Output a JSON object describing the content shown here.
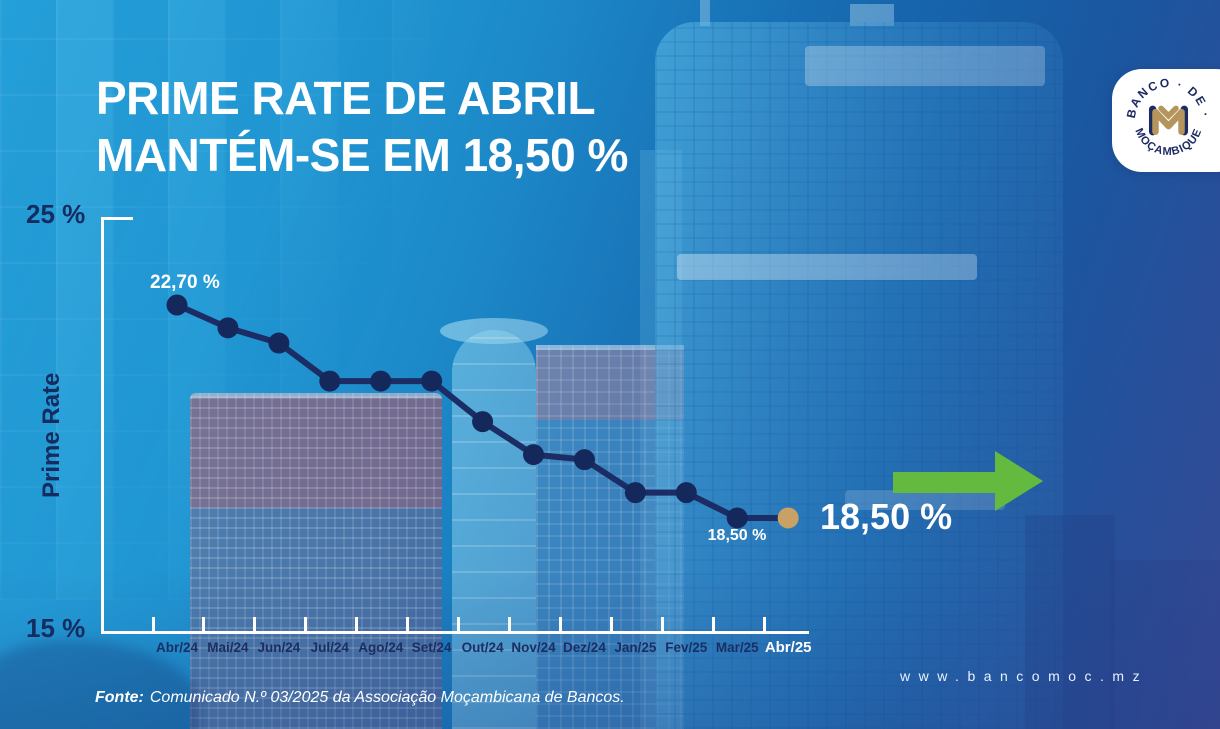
{
  "header": {
    "title_line1": "PRIME RATE DE ABRIL",
    "title_line2": "MANTÉM-SE EM 18,50 %"
  },
  "logo": {
    "name": "Banco de Moçambique",
    "seal_top_text": "BANCO · DE ·",
    "seal_bottom_text": "MOÇAMBIQUE"
  },
  "chart_data": {
    "type": "line",
    "title": "Prime Rate Abr/24 - Abr/25",
    "ylabel": "Prime Rate",
    "xlabel": "",
    "ylim": [
      15,
      25
    ],
    "y_tick_labels": [
      "25 %",
      "15 %"
    ],
    "grid": false,
    "legend": "none",
    "categories": [
      "Abr/24",
      "Mai/24",
      "Jun/24",
      "Jul/24",
      "Ago/24",
      "Set/24",
      "Out/24",
      "Nov/24",
      "Dez/24",
      "Jan/25",
      "Fev/25",
      "Mar/25",
      "Abr/25"
    ],
    "values": [
      22.7,
      22.25,
      21.95,
      21.2,
      21.2,
      21.2,
      20.4,
      19.75,
      19.65,
      19.0,
      19.0,
      18.5,
      18.5
    ],
    "labeled_points": {
      "Abr/24": "22,70 %",
      "Mar/25": "18,50 %",
      "Abr/25": "18,50 %"
    },
    "annotations": {
      "first_point_label": "22,70 %",
      "mar25_label": "18,50 %",
      "current_value_label": "18,50 %"
    },
    "colors": {
      "line": "#1b2d64",
      "point": "#15285c",
      "current_point": "#c9a164",
      "axis": "#ffffff",
      "tick_label": "#1b2e63",
      "current_tick_label": "#ffffff",
      "trend_arrow": "#63ba3e"
    }
  },
  "footer": {
    "source_prefix": "Fonte:",
    "source_text": "Comunicado N.º 03/2025 da Associação Moçambicana de Bancos.",
    "website": "www.bancomoc.mz"
  }
}
